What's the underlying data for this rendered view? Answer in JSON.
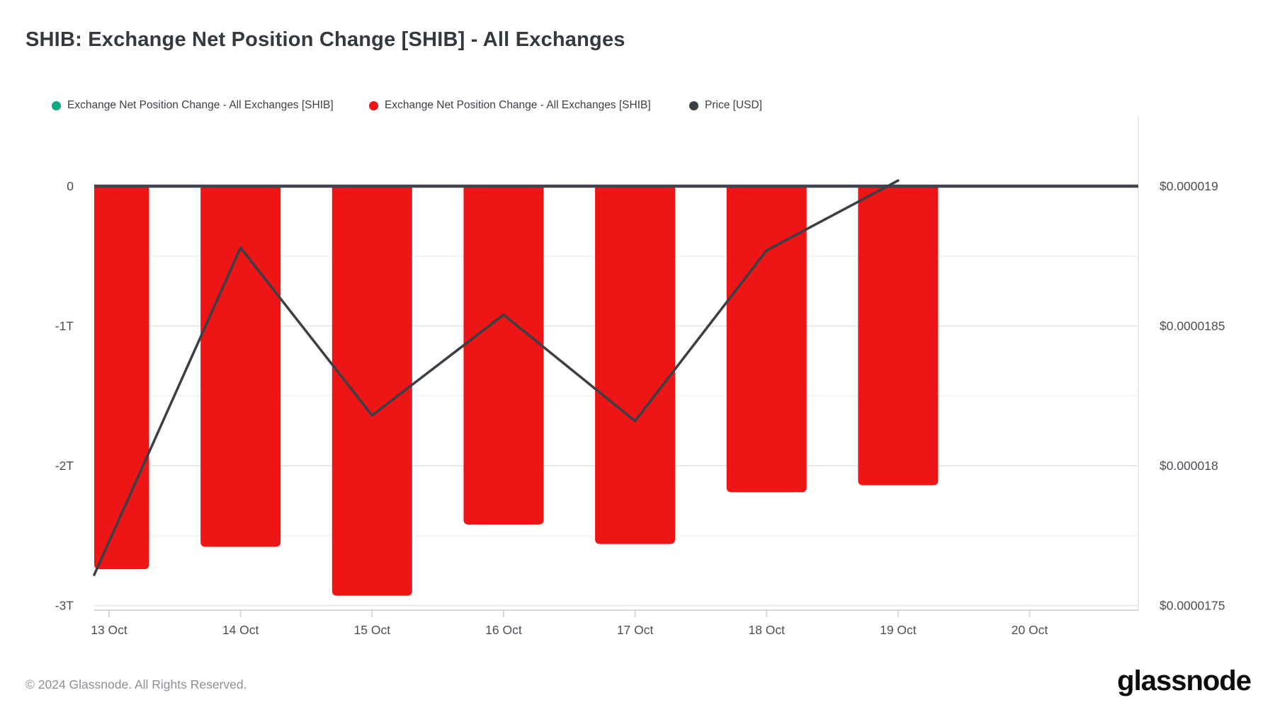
{
  "header": {
    "title": "SHIB: Exchange Net Position Change [SHIB] - All Exchanges"
  },
  "legend": {
    "items": [
      {
        "label": "Exchange Net Position Change - All Exchanges [SHIB]",
        "color": "#0caa7c"
      },
      {
        "label": "Exchange Net Position Change - All Exchanges [SHIB]",
        "color": "#ed1515"
      },
      {
        "label": "Price [USD]",
        "color": "#3a3f46"
      }
    ]
  },
  "chart_data": {
    "type": "bar",
    "subtype": "combo-bar-line",
    "title": "SHIB: Exchange Net Position Change [SHIB] - All Exchanges",
    "categories": [
      "13 Oct",
      "14 Oct",
      "15 Oct",
      "16 Oct",
      "17 Oct",
      "18 Oct",
      "19 Oct",
      "20 Oct"
    ],
    "series": [
      {
        "name": "Exchange Net Position Change - All Exchanges [SHIB]",
        "type": "bar",
        "axis": "left",
        "unit": "trillion SHIB",
        "color": "#ed1515",
        "values": [
          -2.74,
          -2.58,
          -2.93,
          -2.42,
          -2.56,
          -2.19,
          -2.14,
          null
        ]
      },
      {
        "name": "Price [USD]",
        "type": "line",
        "axis": "right",
        "unit": "USD",
        "color": "#3a3f46",
        "values": [
          1.761e-05,
          1.878e-05,
          1.818e-05,
          1.854e-05,
          1.816e-05,
          1.877e-05,
          1.902e-05,
          null
        ]
      }
    ],
    "left_axis": {
      "tick_labels": [
        "0",
        "-1T",
        "-2T",
        "-3T"
      ],
      "tick_values": [
        0,
        -1,
        -2,
        -3
      ],
      "lim": [
        -3.1,
        0.5
      ]
    },
    "right_axis": {
      "tick_labels": [
        "$0.000019",
        "$0.0000185",
        "$0.000018",
        "$0.0000175"
      ],
      "tick_values": [
        1.9e-05,
        1.85e-05,
        1.8e-05,
        1.75e-05
      ]
    },
    "grid": "horizontal major + half-step minor",
    "legend_position": "top-left"
  },
  "colors": {
    "bar_red": "#ed1515",
    "legend_green": "#0caa7c",
    "line_dark": "#3a3f46",
    "zero_line": "#40454c",
    "grid_major": "#e9e9e9",
    "grid_minor": "#f4f4f4",
    "axis_line": "#d8d8d8",
    "axis_text": "#4b4f55",
    "background": "#ffffff"
  },
  "footer": {
    "copyright": "© 2024 Glassnode. All Rights Reserved.",
    "logo_text": "glassnode"
  }
}
